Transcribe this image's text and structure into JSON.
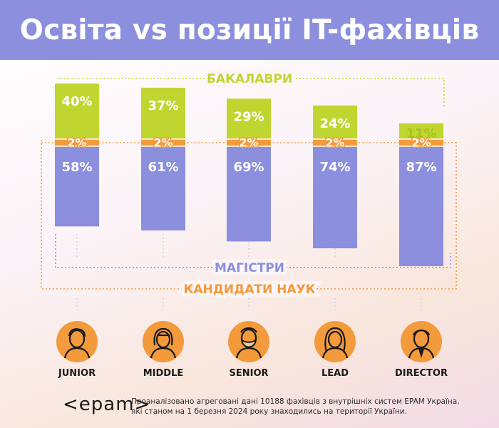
{
  "header": {
    "title": "Освіта vs позиції IT-фахівців"
  },
  "chart_data": {
    "type": "bar",
    "stacked": true,
    "categories": [
      "JUNIOR",
      "MIDDLE",
      "SENIOR",
      "LEAD",
      "DIRECTOR"
    ],
    "series": [
      {
        "name": "МАГІСТРИ",
        "color": "#8b8fde",
        "values": [
          58,
          61,
          69,
          74,
          87
        ],
        "labels": [
          "58%",
          "61%",
          "69%",
          "74%",
          "87%"
        ]
      },
      {
        "name": "КАНДИДАТИ НАУК",
        "color": "#f39a3c",
        "values": [
          2,
          2,
          2,
          2,
          2
        ],
        "labels": [
          "2%",
          "2%",
          "2%",
          "2%",
          "2%"
        ]
      },
      {
        "name": "БАКАЛАВРИ",
        "color": "#bfd630",
        "values": [
          40,
          37,
          29,
          24,
          11
        ],
        "labels": [
          "40%",
          "37%",
          "29%",
          "24%",
          "11%"
        ]
      }
    ]
  },
  "icons": [
    "junior-avatar-icon",
    "middle-avatar-icon",
    "senior-avatar-icon",
    "lead-avatar-icon",
    "director-avatar-icon"
  ],
  "footer": {
    "logo": "<epam>",
    "note": "Проаналізовано агреговані дані 10188 фахівців з внутрішніх систем EPAM Україна, які станом на 1 березня 2024 року знаходились на території України."
  }
}
